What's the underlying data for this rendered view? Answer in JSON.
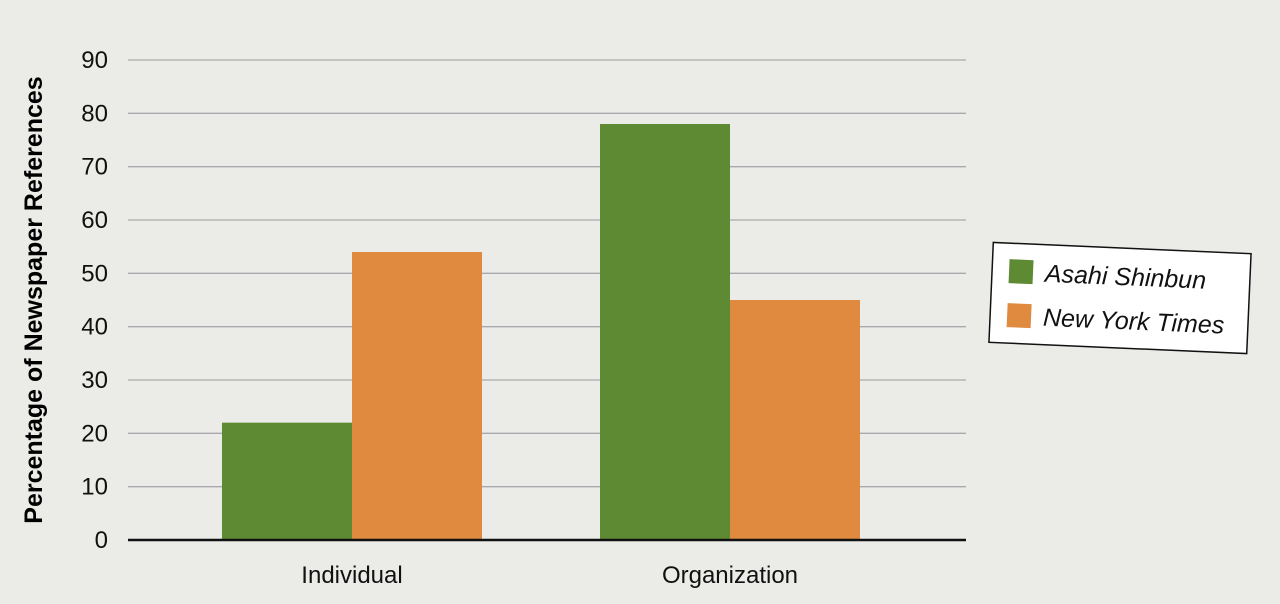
{
  "chart_data": {
    "type": "bar",
    "categories": [
      "Individual",
      "Organization"
    ],
    "series": [
      {
        "name": "Asahi Shinbun",
        "values": [
          22,
          78
        ],
        "color": "#5e8a33"
      },
      {
        "name": "New York Times",
        "values": [
          54,
          45
        ],
        "color": "#e08a40"
      }
    ],
    "title": "",
    "xlabel": "",
    "ylabel": "Percentage of Newspaper References",
    "ylim": [
      0,
      90
    ],
    "yticks": [
      0,
      10,
      20,
      30,
      40,
      50,
      60,
      70,
      80,
      90
    ],
    "grid": true,
    "legend_position": "right"
  }
}
